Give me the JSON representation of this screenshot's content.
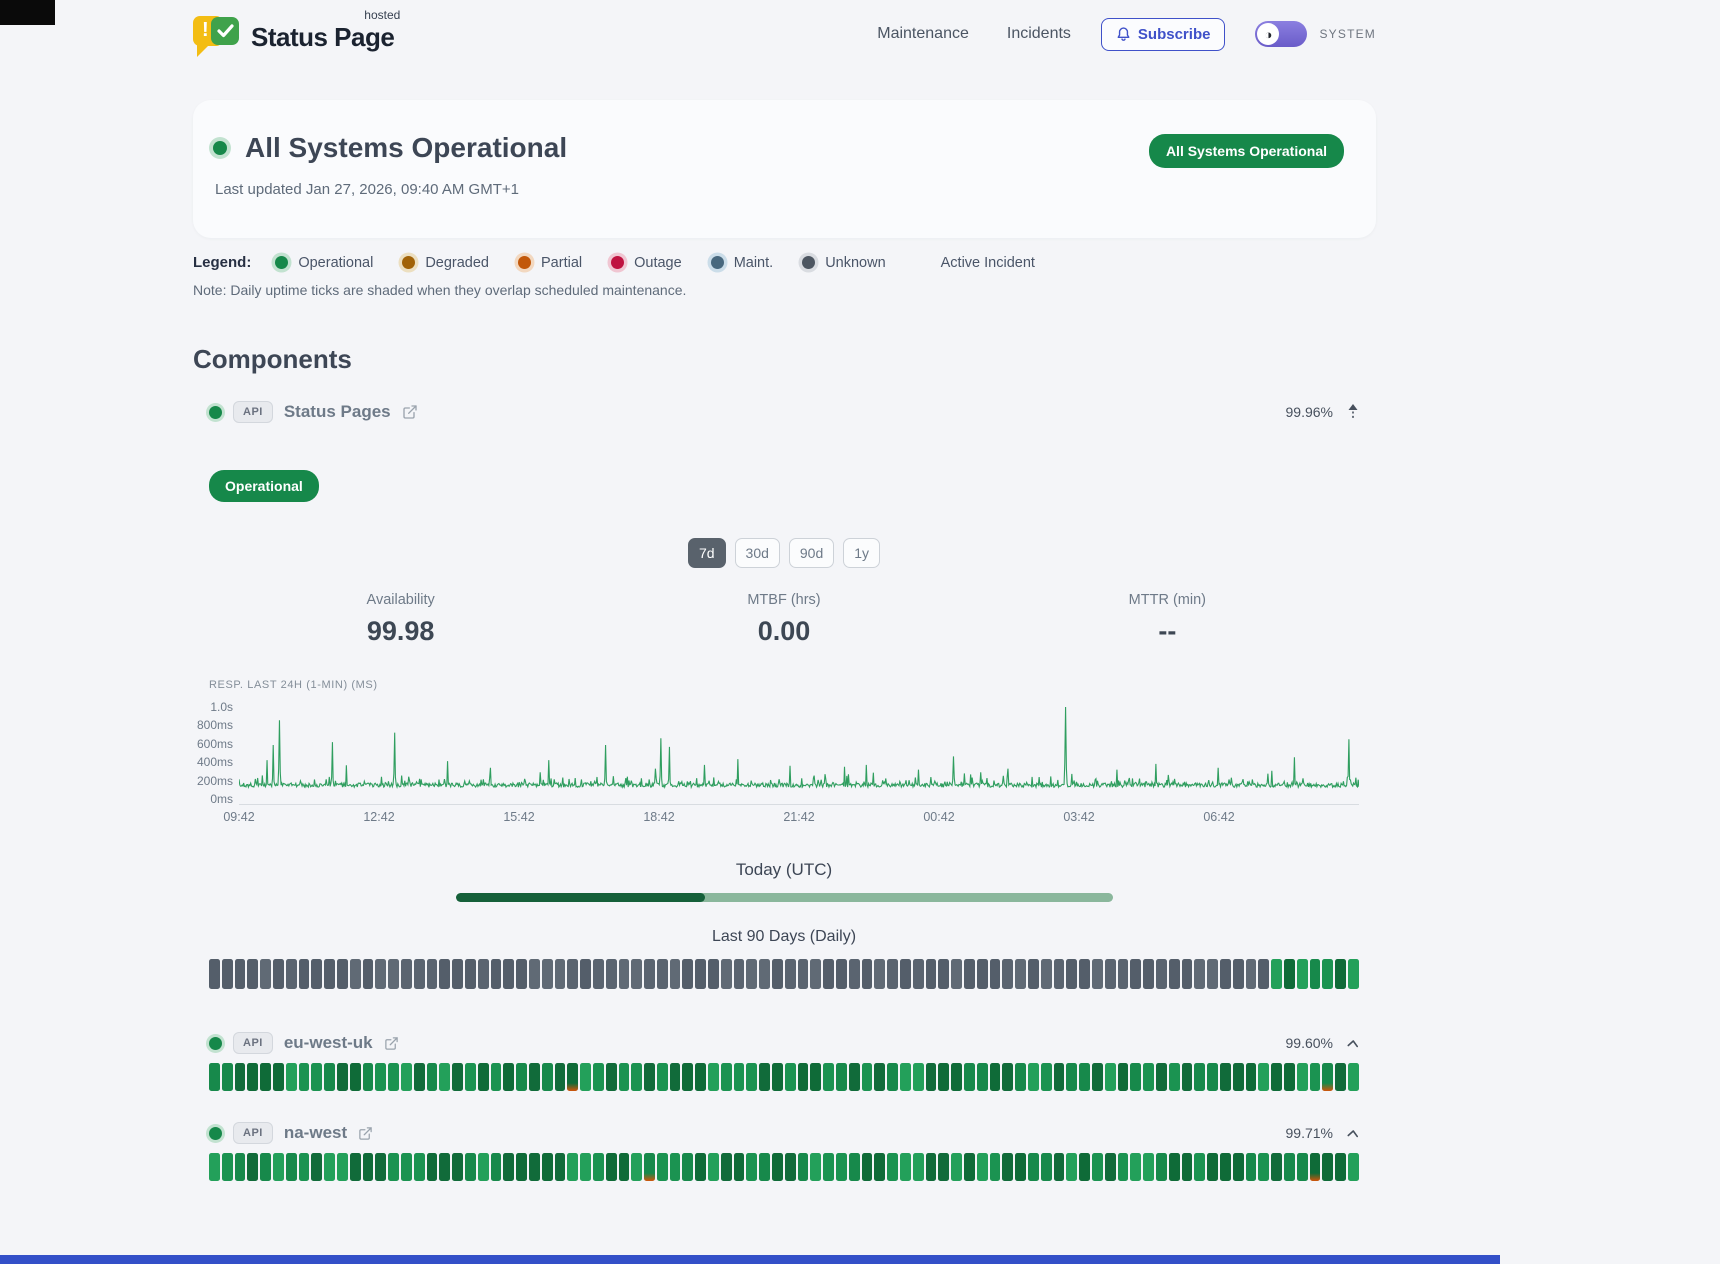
{
  "theme": {
    "page_bg": "#f4f5f8",
    "accent_green": "#16884a",
    "accent_indigo": "#3f51c9",
    "toggle_purple": "#7b6fd4",
    "active_range_bg": "#59626c",
    "chart_line": "#2f9e5f",
    "progress_fill": "#15603a",
    "progress_track": "#8ab79c",
    "tick_gray_shades": [
      "#5a6470",
      "#545e6a",
      "#606a75"
    ],
    "tick_green_shades": [
      "#17894b",
      "#0f6b38",
      "#23a05a",
      "#116b3a",
      "#1b9351"
    ],
    "partial_orange": "#d2540a",
    "bottom_bar_blue": "#3350c8"
  },
  "header": {
    "logo_title": "Status Page",
    "logo_superscript": "hosted",
    "logo_exclaim": "!",
    "nav": [
      {
        "label": "Maintenance"
      },
      {
        "label": "Incidents"
      }
    ],
    "subscribe_label": "Subscribe",
    "theme_toggle_label": "SYSTEM",
    "theme_toggle_glyph": "◑"
  },
  "hero": {
    "title": "All Systems Operational",
    "last_updated": "Last updated Jan 27, 2026, 09:40 AM GMT+1",
    "badge_label": "All Systems Operational"
  },
  "legend": {
    "label": "Legend:",
    "items": [
      {
        "label": "Operational",
        "color": "#16884a",
        "ring": "#c2e2d0"
      },
      {
        "label": "Degraded",
        "color": "#a16207",
        "ring": "#ecdfc0"
      },
      {
        "label": "Partial",
        "color": "#c2580a",
        "ring": "#f2d8c0"
      },
      {
        "label": "Outage",
        "color": "#bf1240",
        "ring": "#f0c6d2"
      },
      {
        "label": "Maint.",
        "color": "#48687e",
        "ring": "#cbdde9"
      },
      {
        "label": "Unknown",
        "color": "#4d5661",
        "ring": "#d9dce1"
      }
    ],
    "active_incident_label": "Active Incident",
    "note": "Note: Daily uptime ticks are shaded when they overlap scheduled maintenance."
  },
  "components": {
    "heading": "Components",
    "main": {
      "type_badge": "API",
      "name": "Status Pages",
      "uptime": "99.96%",
      "status_badge": "Operational",
      "ranges": [
        {
          "label": "7d",
          "active": true
        },
        {
          "label": "30d",
          "active": false
        },
        {
          "label": "90d",
          "active": false
        },
        {
          "label": "1y",
          "active": false
        }
      ],
      "stats": [
        {
          "label": "Availability",
          "value": "99.98"
        },
        {
          "label": "MTBF (hrs)",
          "value": "0.00"
        },
        {
          "label": "MTTR (min)",
          "value": "--"
        }
      ],
      "today": {
        "label": "Today (UTC)",
        "percent": 38
      },
      "ninety": {
        "label": "Last 90 Days (Daily)",
        "ticks_rle": [
          [
            "u",
            83
          ],
          [
            "o",
            7
          ]
        ]
      }
    },
    "rows": [
      {
        "type_badge": "API",
        "name": "eu-west-uk",
        "uptime": "99.60%",
        "ticks_rle": [
          [
            "o",
            28
          ],
          [
            "p",
            1
          ],
          [
            "o",
            58
          ],
          [
            "p",
            1
          ],
          [
            "o",
            2
          ]
        ]
      },
      {
        "type_badge": "API",
        "name": "na-west",
        "uptime": "99.71%",
        "ticks_rle": [
          [
            "o",
            34
          ],
          [
            "p",
            1
          ],
          [
            "o",
            51
          ],
          [
            "p",
            1
          ],
          [
            "o",
            3
          ]
        ]
      }
    ]
  },
  "chart_data": {
    "type": "line",
    "title": "RESP. LAST 24H (1-MIN) (MS)",
    "x_ticks": [
      "09:42",
      "12:42",
      "15:42",
      "18:42",
      "21:42",
      "00:42",
      "03:42",
      "06:42"
    ],
    "y_ticks": [
      "1.0s",
      "800ms",
      "600ms",
      "400ms",
      "200ms",
      "0ms"
    ],
    "ylim": [
      0,
      1000
    ],
    "start_time": "09:42",
    "span_hours": 24,
    "interval_min": 1,
    "baseline_ms": [
      145,
      230
    ],
    "line_color": "#2f9e5f",
    "grid": false,
    "spikes": [
      {
        "t": "10:18",
        "v": 430
      },
      {
        "t": "10:26",
        "v": 590
      },
      {
        "t": "10:34",
        "v": 850
      },
      {
        "t": "11:42",
        "v": 620
      },
      {
        "t": "13:02",
        "v": 720
      },
      {
        "t": "14:10",
        "v": 420
      },
      {
        "t": "15:05",
        "v": 350
      },
      {
        "t": "16:20",
        "v": 430
      },
      {
        "t": "17:33",
        "v": 590
      },
      {
        "t": "18:44",
        "v": 660
      },
      {
        "t": "18:55",
        "v": 570
      },
      {
        "t": "19:40",
        "v": 380
      },
      {
        "t": "20:23",
        "v": 440
      },
      {
        "t": "21:30",
        "v": 370
      },
      {
        "t": "22:40",
        "v": 360
      },
      {
        "t": "23:08",
        "v": 380
      },
      {
        "t": "00:15",
        "v": 330
      },
      {
        "t": "01:00",
        "v": 470
      },
      {
        "t": "02:10",
        "v": 340
      },
      {
        "t": "03:24",
        "v": 990
      },
      {
        "t": "04:30",
        "v": 330
      },
      {
        "t": "05:20",
        "v": 390
      },
      {
        "t": "06:40",
        "v": 350
      },
      {
        "t": "08:18",
        "v": 460
      },
      {
        "t": "09:28",
        "v": 650
      }
    ]
  }
}
